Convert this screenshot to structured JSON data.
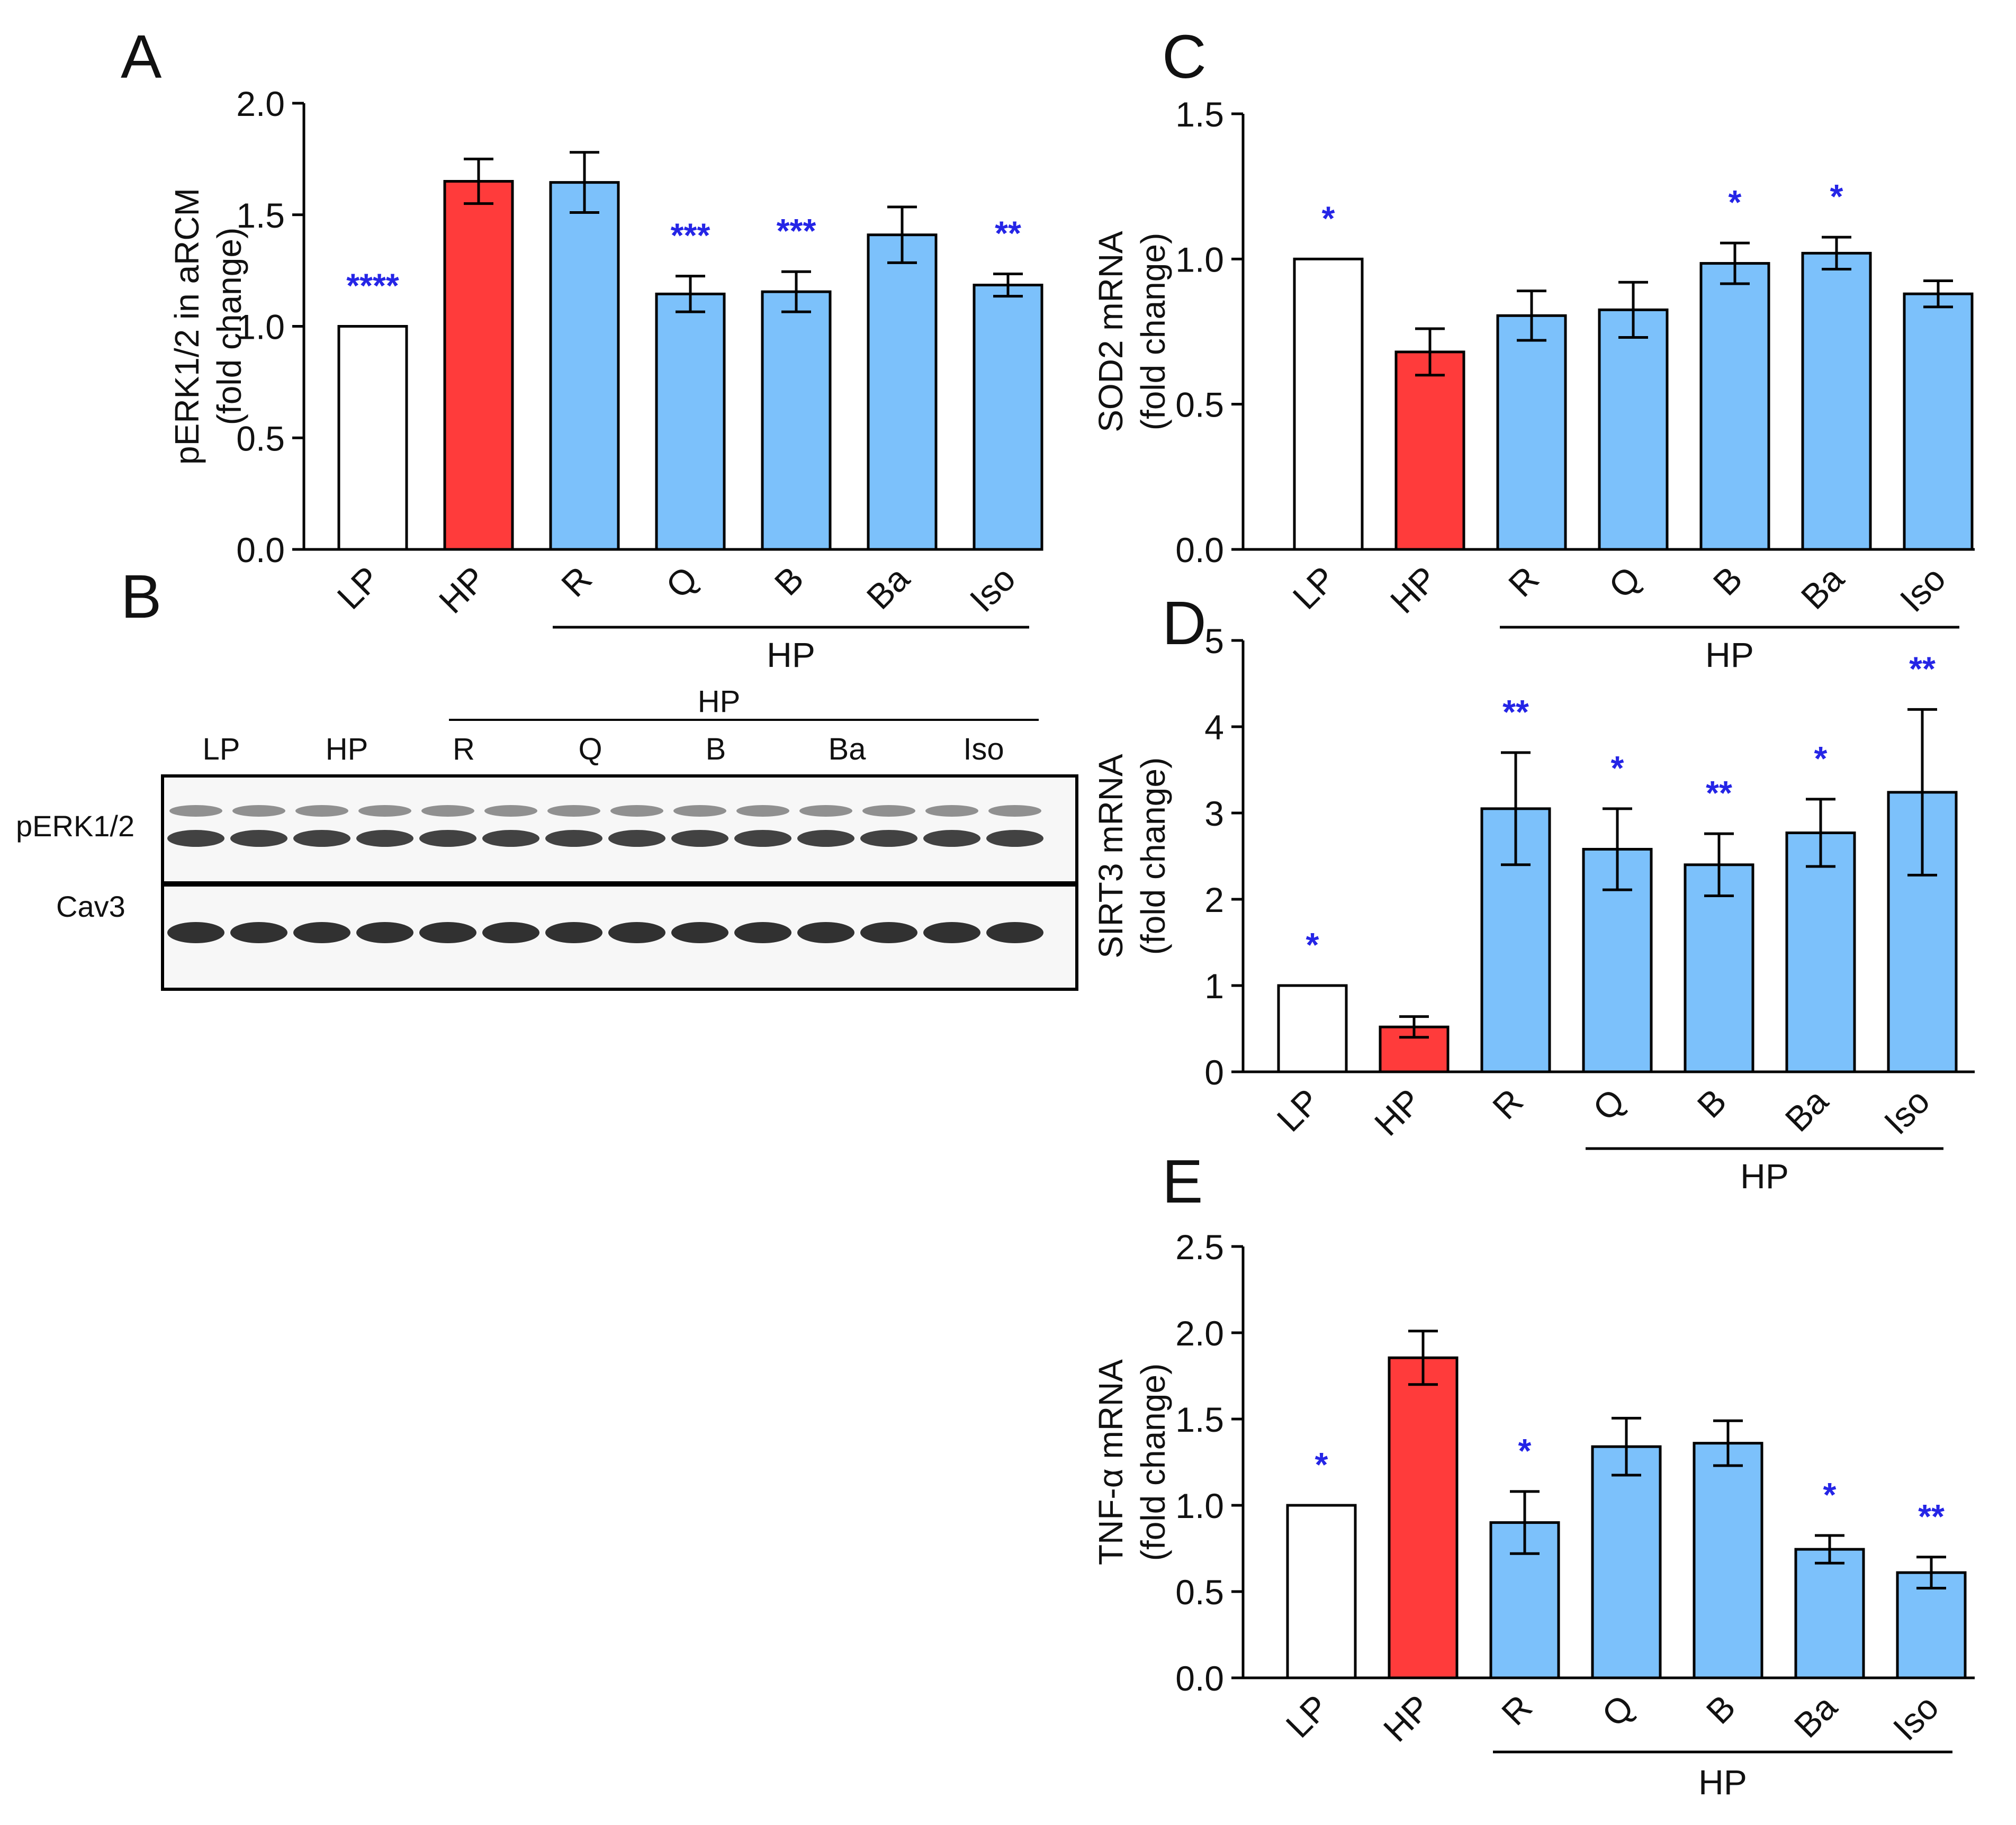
{
  "panel_letters": {
    "a": "A",
    "b": "B",
    "c": "C",
    "d": "D",
    "e": "E"
  },
  "colors": {
    "lp_fill": "#ffffff",
    "hp_fill": "#ff3b3b",
    "treat_fill": "#7cc1fb",
    "bar_stroke": "#000000",
    "star_color": "#2525e6",
    "axis_color": "#000000"
  },
  "chart_data": [
    {
      "id": "A",
      "type": "bar",
      "title": "",
      "ylabel": [
        "pERK1/2 in aRCM",
        "(fold change)"
      ],
      "categories": [
        "LP",
        "HP",
        "R",
        "Q",
        "B",
        "Ba",
        "Iso"
      ],
      "values": [
        1.0,
        1.65,
        1.645,
        1.145,
        1.155,
        1.41,
        1.185
      ],
      "errors": [
        0,
        0.1,
        0.135,
        0.08,
        0.09,
        0.125,
        0.05
      ],
      "significance": [
        "****",
        "",
        "",
        "***",
        "***",
        "",
        "**"
      ],
      "ylim": [
        0,
        2.0
      ],
      "yticks": [
        "0.0",
        "0.5",
        "1.0",
        "1.5",
        "2.0"
      ],
      "group_label": "HP",
      "group_span": [
        "R",
        "Iso"
      ]
    },
    {
      "id": "C",
      "type": "bar",
      "title": "",
      "ylabel": [
        "SOD2 mRNA",
        "(fold change)"
      ],
      "categories": [
        "LP",
        "HP",
        "R",
        "Q",
        "B",
        "Ba",
        "Iso"
      ],
      "values": [
        1.0,
        0.68,
        0.805,
        0.825,
        0.985,
        1.02,
        0.88
      ],
      "errors": [
        0,
        0.08,
        0.085,
        0.095,
        0.07,
        0.055,
        0.045
      ],
      "significance": [
        "*",
        "",
        "",
        "",
        "*",
        "*",
        ""
      ],
      "ylim": [
        0,
        1.5
      ],
      "yticks": [
        "0.0",
        "0.5",
        "1.0",
        "1.5"
      ],
      "group_label": "HP",
      "group_span": [
        "R",
        "Iso"
      ]
    },
    {
      "id": "D",
      "type": "bar",
      "title": "",
      "ylabel": [
        "SIRT3 mRNA",
        "(fold change)"
      ],
      "categories": [
        "LP",
        "HP",
        "R",
        "Q",
        "B",
        "Ba",
        "Iso"
      ],
      "values": [
        1.0,
        0.52,
        3.05,
        2.58,
        2.4,
        2.77,
        3.24
      ],
      "errors": [
        0,
        0.12,
        0.65,
        0.47,
        0.36,
        0.39,
        0.96
      ],
      "significance": [
        "*",
        "",
        "**",
        "*",
        "**",
        "*",
        "**"
      ],
      "ylim": [
        0,
        5
      ],
      "yticks": [
        "0",
        "1",
        "2",
        "3",
        "4",
        "5"
      ],
      "group_label": "HP",
      "group_span": [
        "Q",
        "Iso"
      ]
    },
    {
      "id": "E",
      "type": "bar",
      "title": "",
      "ylabel": [
        "TNF-α mRNA",
        "(fold change)"
      ],
      "categories": [
        "LP",
        "HP",
        "R",
        "Q",
        "B",
        "Ba",
        "Iso"
      ],
      "values": [
        1.0,
        1.855,
        0.9,
        1.34,
        1.36,
        0.745,
        0.61
      ],
      "errors": [
        0,
        0.155,
        0.18,
        0.165,
        0.13,
        0.08,
        0.09
      ],
      "significance": [
        "*",
        "",
        "*",
        "",
        "",
        "*",
        "**"
      ],
      "ylim": [
        0,
        2.5
      ],
      "yticks": [
        "0.0",
        "0.5",
        "1.0",
        "1.5",
        "2.0",
        "2.5"
      ],
      "group_label": "HP",
      "group_span": [
        "R",
        "Iso"
      ]
    }
  ],
  "blot": {
    "header_label": "HP",
    "lane_labels": [
      "LP",
      "HP",
      "R",
      "Q",
      "B",
      "Ba",
      "Iso"
    ],
    "rows": [
      "pERK1/2",
      "Cav3"
    ]
  }
}
